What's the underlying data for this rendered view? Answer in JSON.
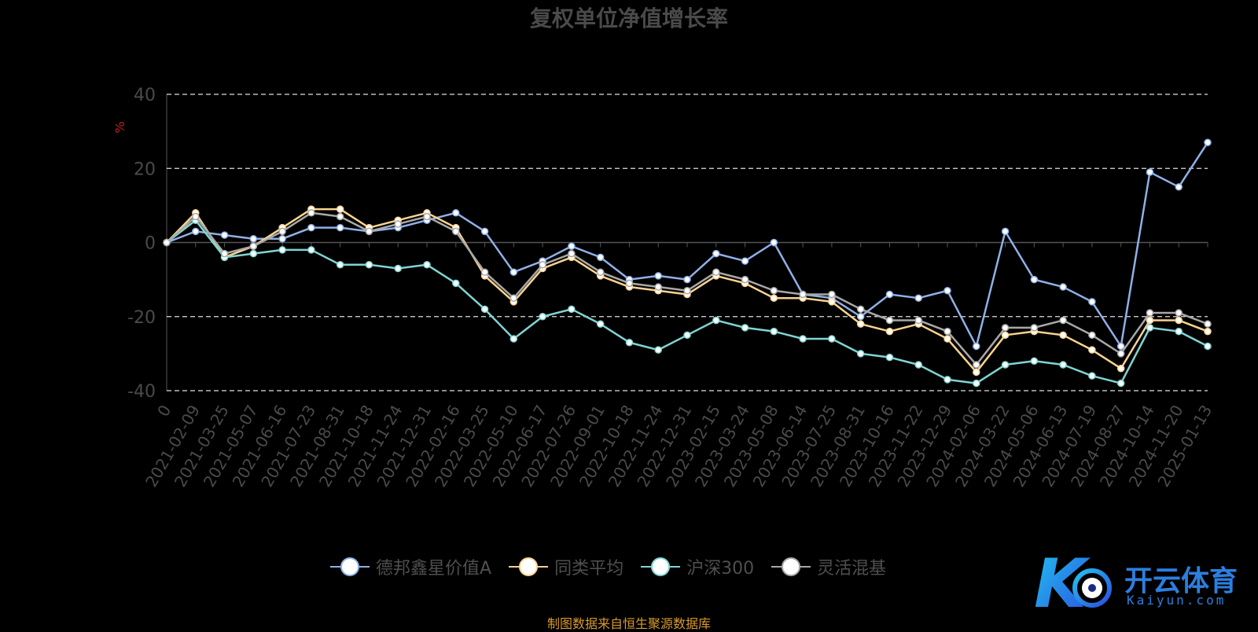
{
  "chart_data": {
    "type": "line",
    "title": "复权单位净值增长率",
    "ylabel": "%",
    "ylim": [
      -40,
      40
    ],
    "yticks": [
      -40,
      -20,
      0,
      20,
      40
    ],
    "xticks": [
      "0",
      "2021-02-09",
      "2021-03-25",
      "2021-05-07",
      "2021-06-16",
      "2021-07-23",
      "2021-08-31",
      "2021-10-18",
      "2021-11-24",
      "2021-12-31",
      "2022-02-16",
      "2022-03-25",
      "2022-05-10",
      "2022-06-17",
      "2022-07-26",
      "2022-09-01",
      "2022-10-18",
      "2022-11-24",
      "2022-12-31",
      "2023-02-15",
      "2023-03-24",
      "2023-05-08",
      "2023-06-14",
      "2023-07-25",
      "2023-08-31",
      "2023-10-16",
      "2023-11-22",
      "2023-12-29",
      "2024-02-06",
      "2024-03-22",
      "2024-05-06",
      "2024-06-13",
      "2024-07-19",
      "2024-08-27",
      "2024-10-14",
      "2024-11-20",
      "2025-01-13"
    ],
    "grid": "dashed-horizontal",
    "legend_position": "bottom",
    "x_index": [
      0,
      1,
      2,
      3,
      4,
      5,
      6,
      7,
      8,
      9,
      10,
      11,
      12,
      13,
      14,
      15,
      16,
      17,
      18,
      19,
      20,
      21,
      22,
      23,
      24,
      25,
      26,
      27,
      28,
      29,
      30,
      31,
      32,
      33,
      34,
      35,
      36
    ],
    "series": [
      {
        "name": "德邦鑫星价值A",
        "color": "#8fb0e8",
        "values": [
          0,
          3,
          2,
          1,
          1,
          4,
          4,
          3,
          4,
          6,
          8,
          3,
          -8,
          -5,
          -1,
          -4,
          -10,
          -9,
          -10,
          -3,
          -5,
          0,
          -14,
          -15,
          -20,
          -14,
          -15,
          -13,
          -28,
          3,
          -10,
          -12,
          -16,
          -28,
          19,
          15,
          27
        ]
      },
      {
        "name": "同类平均",
        "color": "#fbd38f",
        "values": [
          0,
          8,
          -4,
          -1,
          4,
          9,
          9,
          4,
          6,
          8,
          4,
          -9,
          -16,
          -7,
          -4,
          -9,
          -12,
          -13,
          -14,
          -9,
          -11,
          -15,
          -15,
          -16,
          -22,
          -24,
          -22,
          -26,
          -35,
          -25,
          -24,
          -25,
          -29,
          -34,
          -21,
          -21,
          -24
        ]
      },
      {
        "name": "沪深300",
        "color": "#7fd5d2",
        "values": [
          0,
          6,
          -4,
          -3,
          -2,
          -2,
          -6,
          -6,
          -7,
          -6,
          -11,
          -18,
          -26,
          -20,
          -18,
          -22,
          -27,
          -29,
          -25,
          -21,
          -23,
          -24,
          -26,
          -26,
          -30,
          -31,
          -33,
          -37,
          -38,
          -33,
          -32,
          -33,
          -36,
          -38,
          -23,
          -24,
          -28
        ]
      },
      {
        "name": "灵活混基",
        "color": "#a8a8a8",
        "values": [
          0,
          7,
          -3,
          -1,
          3,
          8,
          7,
          3,
          5,
          7,
          3,
          -8,
          -15,
          -6,
          -3,
          -8,
          -11,
          -12,
          -13,
          -8,
          -10,
          -13,
          -14,
          -14,
          -18,
          -21,
          -21,
          -24,
          -33,
          -23,
          -23,
          -21,
          -25,
          -30,
          -19,
          -19,
          -22
        ]
      }
    ]
  },
  "legend": [
    {
      "label": "德邦鑫星价值A",
      "color": "#8fb0e8"
    },
    {
      "label": "同类平均",
      "color": "#fbd38f"
    },
    {
      "label": "沪深300",
      "color": "#7fd5d2"
    },
    {
      "label": "灵活混基",
      "color": "#a8a8a8"
    }
  ],
  "footer": "制图数据来自恒生聚源数据库",
  "watermark": {
    "text": "开云体育",
    "sub": "Kaiyun.com"
  }
}
